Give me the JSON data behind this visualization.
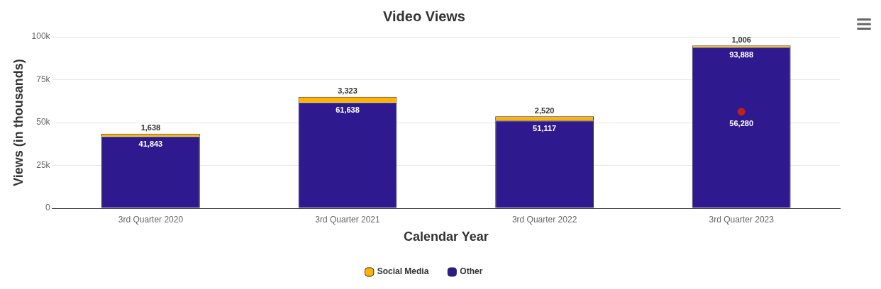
{
  "chart_data": {
    "type": "bar",
    "title": "Video Views",
    "xlabel": "Calendar Year",
    "ylabel": "Views (in thousands)",
    "categories": [
      "3rd Quarter 2020",
      "3rd Quarter 2021",
      "3rd Quarter 2022",
      "3rd Quarter 2023"
    ],
    "stacked": true,
    "ylim": [
      0,
      100000
    ],
    "yticks": [
      {
        "value": 0,
        "label": "0"
      },
      {
        "value": 25000,
        "label": "25k"
      },
      {
        "value": 50000,
        "label": "50k"
      },
      {
        "value": 75000,
        "label": "75k"
      },
      {
        "value": 100000,
        "label": "100k"
      }
    ],
    "grid": "y",
    "legend": "bottom",
    "series": [
      {
        "name": "Other",
        "color": "#2e1a8e",
        "values": [
          41843,
          61638,
          51117,
          93888
        ],
        "value_labels": [
          "41,843",
          "61,638",
          "51,117",
          "93,888"
        ]
      },
      {
        "name": "Social Media",
        "color": "#ffb300",
        "values": [
          1638,
          3323,
          2520,
          1006
        ],
        "value_labels": [
          "1,638",
          "3,323",
          "2,520",
          "1,006"
        ]
      },
      {
        "type": "scatter",
        "color": "#c0201f",
        "marker": "circle",
        "x": [
          "3rd Quarter 2023"
        ],
        "values": [
          56280
        ],
        "value_labels": [
          "56,280"
        ]
      }
    ]
  }
}
